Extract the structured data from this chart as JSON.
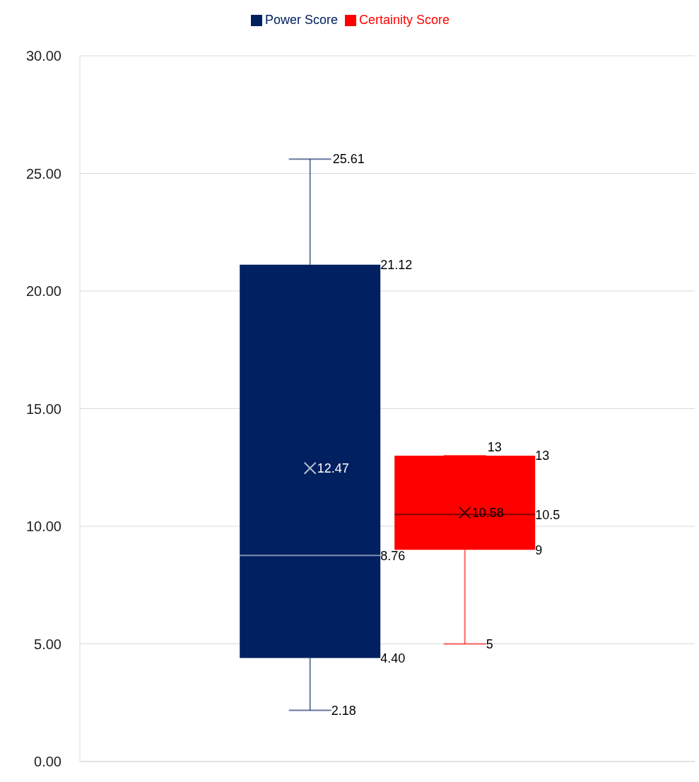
{
  "chart_data": {
    "type": "box",
    "categories": [
      null
    ],
    "series": [
      {
        "name": "Power Score",
        "color": "#002060",
        "boxes": [
          {
            "low": 2.18,
            "q1": 4.4,
            "median": 8.76,
            "q3": 21.12,
            "high": 25.61,
            "mean": 12.47
          }
        ],
        "value_labels": [
          {
            "low": "2.18",
            "q1": "4.40",
            "median": "8.76",
            "q3": "21.12",
            "high": "25.61",
            "mean": "12.47"
          }
        ]
      },
      {
        "name": "Certainity Score",
        "color": "#ff0000",
        "boxes": [
          {
            "low": 5,
            "q1": 9,
            "median": 10.5,
            "q3": 13,
            "high": 13,
            "mean": 10.58
          }
        ],
        "value_labels": [
          {
            "low": "5",
            "q1": "9",
            "median": "10.5",
            "q3": "13",
            "high": "13",
            "mean": "10.58"
          }
        ]
      }
    ],
    "ylim": [
      0,
      30
    ],
    "yticks": [
      {
        "value": 0,
        "label": "0.00"
      },
      {
        "value": 5,
        "label": "5.00"
      },
      {
        "value": 10,
        "label": "10.00"
      },
      {
        "value": 15,
        "label": "15.00"
      },
      {
        "value": 20,
        "label": "20.00"
      },
      {
        "value": 25,
        "label": "25.00"
      },
      {
        "value": 30,
        "label": "30.00"
      }
    ],
    "grid": "y",
    "legend": "top",
    "data_labels": true
  }
}
